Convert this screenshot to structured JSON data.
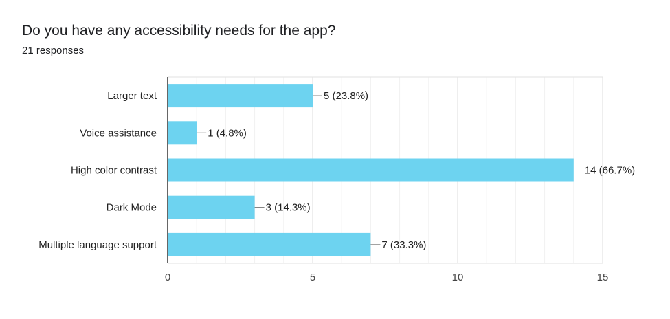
{
  "header": {
    "title": "Do you have any accessibility needs for the app?",
    "responses": "21 responses"
  },
  "colors": {
    "bar": "#6dd3f0",
    "grid": "#e6e6e6",
    "axis": "#333333"
  },
  "chart_data": {
    "type": "bar",
    "orientation": "horizontal",
    "categories": [
      "Larger text",
      "Voice assistance",
      "High color contrast",
      "Dark Mode",
      "Multiple language support"
    ],
    "values": [
      5,
      1,
      14,
      3,
      7
    ],
    "value_labels": [
      "5 (23.8%)",
      "1 (4.8%)",
      "14 (66.7%)",
      "3 (14.3%)",
      "7 (33.3%)"
    ],
    "xlim": [
      0,
      15
    ],
    "xticks": [
      0,
      5,
      10,
      15
    ],
    "grid": true,
    "legend": "none"
  }
}
